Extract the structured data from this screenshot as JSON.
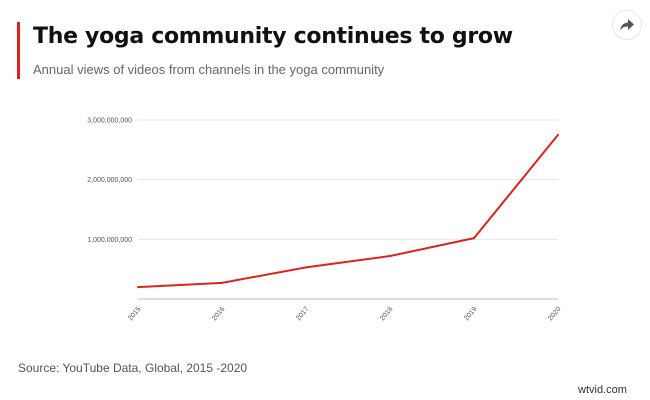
{
  "header": {
    "title": "The yoga community continues to grow",
    "subtitle": "Annual views of videos from channels in the yoga community",
    "share_icon": "share-arrow-icon"
  },
  "footer": {
    "source": "Source: YouTube Data, Global, 2015 -2020",
    "watermark": "wtvid.com"
  },
  "colors": {
    "accent": "#e0201b",
    "line": "#d9251d",
    "grid": "#e6e6e6"
  },
  "chart_data": {
    "type": "line",
    "title": "The yoga community continues to grow",
    "subtitle": "Annual views of videos from channels in the yoga community",
    "xlabel": "",
    "ylabel": "",
    "categories": [
      "2015",
      "2016",
      "2017",
      "2018",
      "2019",
      "2020"
    ],
    "values": [
      200000000,
      270000000,
      530000000,
      720000000,
      1020000000,
      2750000000
    ],
    "ylim": [
      0,
      3000000000
    ],
    "y_ticks": [
      {
        "value": 1000000000,
        "label": "1,000,000,000"
      },
      {
        "value": 2000000000,
        "label": "2,000,000,000"
      },
      {
        "value": 3000000000,
        "label": "3,000,000,000"
      }
    ],
    "grid": true,
    "legend": "none"
  }
}
